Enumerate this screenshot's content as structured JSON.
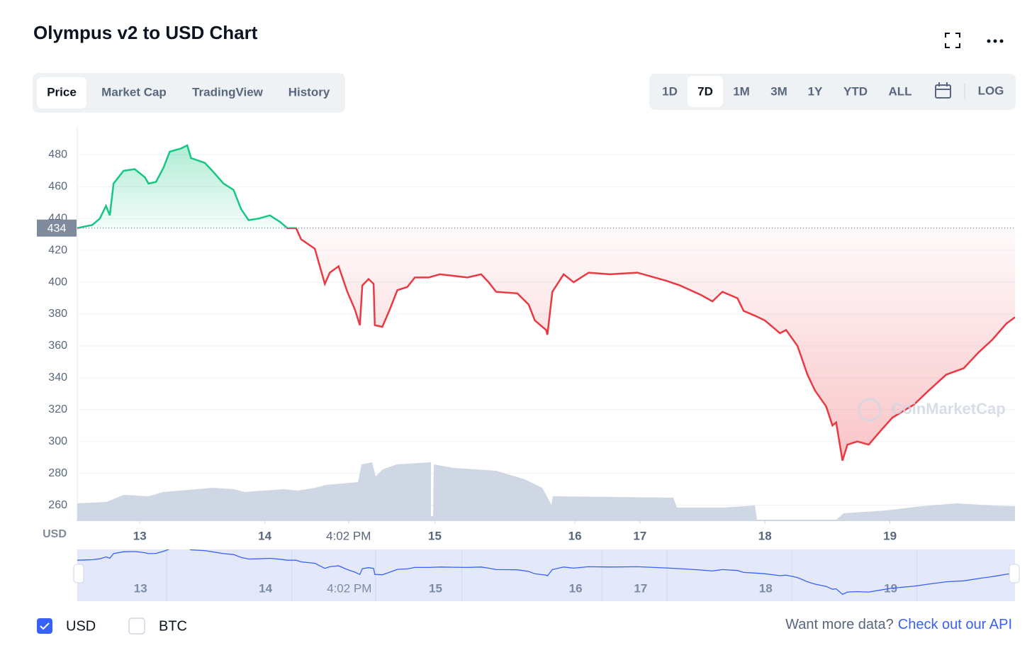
{
  "header": {
    "title": "Olympus v2 to USD Chart"
  },
  "tabs": [
    "Price",
    "Market Cap",
    "TradingView",
    "History"
  ],
  "ranges": [
    "1D",
    "7D",
    "1M",
    "3M",
    "1Y",
    "YTD",
    "ALL"
  ],
  "log_button": "LOG",
  "currencies": [
    "USD",
    "BTC"
  ],
  "footer": {
    "text": "Want more data?",
    "link": "Check out our API"
  },
  "watermark": "CoinMarketCap",
  "chart_data": {
    "type": "line",
    "y_unit": "USD",
    "x": [
      12.5,
      12.62,
      12.68,
      12.73,
      12.76,
      12.79,
      12.87,
      12.96,
      13.04,
      13.07,
      13.13,
      13.19,
      13.24,
      13.33,
      13.38,
      13.41,
      13.52,
      13.58,
      13.67,
      13.75,
      13.81,
      13.87,
      13.95,
      14.04,
      14.12,
      14.18,
      14.25,
      14.29,
      14.4,
      14.48,
      14.52,
      14.59,
      14.66,
      14.72,
      14.76,
      14.78,
      14.83,
      14.87,
      14.88,
      14.94,
      15.0,
      15.06,
      15.14,
      15.2,
      15.31,
      15.4,
      15.51,
      15.62,
      15.73,
      15.79,
      15.85,
      16.02,
      16.11,
      16.16,
      16.25,
      16.26,
      16.3,
      16.39,
      16.47,
      16.59,
      16.76,
      16.98,
      17.21,
      17.32,
      17.49,
      17.58,
      17.66,
      17.78,
      17.83,
      17.92,
      18.0,
      18.12,
      18.17,
      18.26,
      18.34,
      18.4,
      18.49,
      18.54,
      18.57,
      18.62,
      18.66,
      18.74,
      18.83,
      18.94,
      19.02,
      19.19,
      19.31,
      19.45,
      19.59,
      19.71,
      19.82,
      19.93,
      20.0
    ],
    "series": [
      {
        "name": "USD",
        "values": [
          434,
          436,
          440,
          448,
          442,
          462,
          470,
          471,
          466,
          462,
          463,
          472,
          482,
          484,
          486,
          478,
          475,
          470,
          462,
          458,
          446,
          439,
          440,
          442,
          438,
          434,
          434,
          427,
          421,
          399,
          406,
          410,
          394,
          383,
          373,
          398,
          402,
          399,
          373,
          372,
          383,
          395,
          397,
          403,
          403,
          405,
          404,
          403,
          405,
          400,
          394,
          393,
          386,
          376,
          370,
          367,
          394,
          405,
          400,
          406,
          405,
          406,
          401,
          398,
          392,
          388,
          394,
          390,
          382,
          379,
          376,
          368,
          370,
          360,
          342,
          332,
          322,
          310,
          312,
          288,
          298,
          300,
          298,
          308,
          315,
          323,
          332,
          342,
          346,
          356,
          364,
          374,
          378
        ]
      }
    ],
    "colors": {
      "above": "#16c784",
      "below": "#ea3943"
    },
    "reference_value": 434,
    "xlim": [
      12.5,
      20
    ],
    "xticks": [
      13,
      14,
      {
        "value": 14.67,
        "label": "4:02 PM"
      },
      {
        "value": 15.36,
        "label": "15"
      },
      {
        "value": 16.48,
        "label": "16"
      },
      17,
      18,
      19
    ],
    "ylim": [
      250,
      498
    ],
    "yticks": [
      260,
      280,
      300,
      320,
      340,
      360,
      380,
      400,
      420,
      440,
      460,
      480
    ],
    "grid": true
  }
}
